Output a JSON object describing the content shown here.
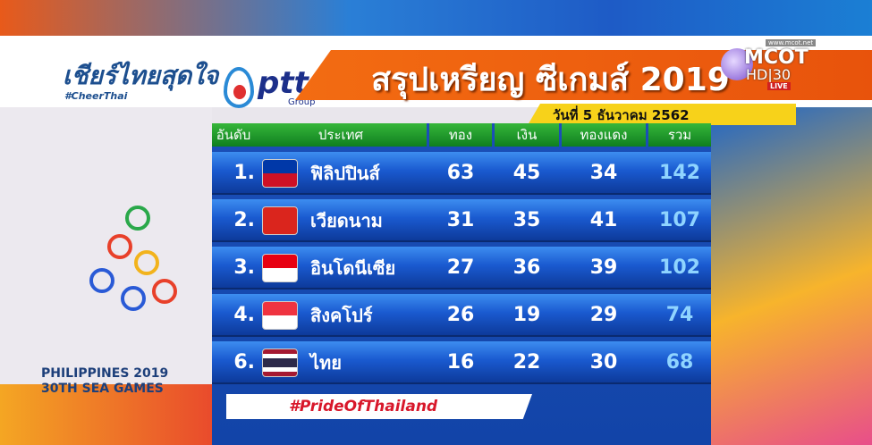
{
  "header": {
    "logo_text": "เชียร์ไทยสุดใจ",
    "logo_hashtag": "#CheerThai",
    "sponsor": "ptt",
    "sponsor_sub": "Group",
    "title": "สรุปเหรียญ ซีเกมส์ 2019",
    "date": "วันที่ 5 ธันวาคม 2562"
  },
  "channel": {
    "url": "www.mcot.net",
    "name": "MCOT",
    "sub": "HD|30",
    "live": "LIVE"
  },
  "table": {
    "columns": [
      "อันดับ",
      "ประเทศ",
      "ทอง",
      "เงิน",
      "ทองแดง",
      "รวม"
    ],
    "rows": [
      {
        "rank": "1.",
        "country": "ฟิลิปปินส์",
        "flag": "philippines-flag",
        "gold": "63",
        "silver": "45",
        "bronze": "34",
        "total": "142"
      },
      {
        "rank": "2.",
        "country": "เวียดนาม",
        "flag": "vietnam-flag",
        "gold": "31",
        "silver": "35",
        "bronze": "41",
        "total": "107"
      },
      {
        "rank": "3.",
        "country": "อินโดนีเซีย",
        "flag": "indonesia-flag",
        "gold": "27",
        "silver": "36",
        "bronze": "39",
        "total": "102"
      },
      {
        "rank": "4.",
        "country": "สิงคโปร์",
        "flag": "singapore-flag",
        "gold": "26",
        "silver": "19",
        "bronze": "29",
        "total": "74"
      },
      {
        "rank": "6.",
        "country": "ไทย",
        "flag": "thailand-flag",
        "gold": "16",
        "silver": "22",
        "bronze": "30",
        "total": "68"
      }
    ]
  },
  "hashtag": "#PrideOfThailand",
  "event": {
    "line1": "PHILIPPINES 2019",
    "line2": "30TH SEA GAMES"
  }
}
